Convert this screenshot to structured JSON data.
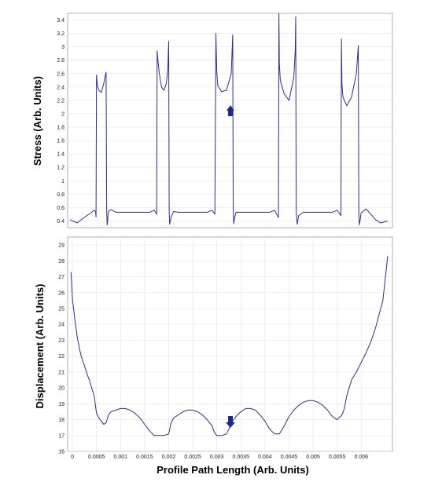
{
  "chart_data": [
    {
      "type": "line",
      "title": "",
      "ylabel": "Stress (Arb. Units)",
      "xlabel": "",
      "xlim": [
        -0.0001,
        0.00665
      ],
      "ylim": [
        0.3,
        3.5
      ],
      "grid": true,
      "y_ticks": [
        "0.4",
        "0.6",
        "0.8",
        "1",
        "1.2",
        "1.4",
        "1.6",
        "1.8",
        "2",
        "2.2",
        "2.4",
        "2.6",
        "2.8",
        "3",
        "3.2",
        "3.4"
      ],
      "x_ticks": [],
      "series": [
        {
          "name": "",
          "color": "#2b2f8c",
          "x": [
            -5e-05,
            0,
            0.0001,
            0.0002,
            0.0003,
            0.0004,
            0.00045,
            0.00048,
            0.00049,
            0.0005,
            0.00052,
            0.00055,
            0.0006,
            0.00065,
            0.00068,
            0.0007,
            0.00071,
            0.00072,
            0.00073,
            0.00074,
            0.00076,
            0.0008,
            0.0009,
            0.001,
            0.0012,
            0.0014,
            0.0016,
            0.0017,
            0.00175,
            0.00176,
            0.00177,
            0.0018,
            0.00185,
            0.0019,
            0.00195,
            0.00198,
            0.002,
            0.00201,
            0.00202,
            0.00205,
            0.0021,
            0.0022,
            0.0024,
            0.0026,
            0.0028,
            0.0029,
            0.00296,
            0.00298,
            0.00299,
            0.003,
            0.00302,
            0.0031,
            0.0032,
            0.0033,
            0.00333,
            0.00334,
            0.00335,
            0.00337,
            0.0034,
            0.0035,
            0.0037,
            0.0039,
            0.0041,
            0.0042,
            0.00428,
            0.00429,
            0.0043,
            0.00432,
            0.0044,
            0.0045,
            0.0046,
            0.00463,
            0.00464,
            0.00465,
            0.00467,
            0.0047,
            0.0048,
            0.005,
            0.0052,
            0.0054,
            0.0055,
            0.00558,
            0.00559,
            0.0056,
            0.00562,
            0.0057,
            0.0058,
            0.0059,
            0.00594,
            0.00595,
            0.00596,
            0.00598,
            0.006,
            0.0061,
            0.0062,
            0.0063,
            0.0064,
            0.00655
          ],
          "y": [
            0.42,
            0.4,
            0.37,
            0.43,
            0.48,
            0.53,
            0.56,
            0.54,
            0.46,
            2.58,
            2.42,
            2.35,
            2.32,
            2.45,
            2.56,
            2.62,
            0.6,
            0.34,
            0.4,
            0.5,
            0.55,
            0.57,
            0.53,
            0.53,
            0.53,
            0.53,
            0.53,
            0.56,
            0.5,
            2.94,
            2.85,
            2.62,
            2.4,
            2.35,
            2.45,
            2.65,
            3.08,
            0.55,
            0.35,
            0.45,
            0.54,
            0.53,
            0.53,
            0.53,
            0.53,
            0.56,
            0.5,
            3.2,
            2.88,
            2.62,
            2.42,
            2.33,
            2.35,
            2.6,
            3.18,
            0.58,
            0.36,
            0.45,
            0.53,
            0.53,
            0.53,
            0.53,
            0.53,
            0.56,
            0.45,
            3.5,
            2.75,
            2.5,
            2.3,
            2.2,
            2.55,
            2.95,
            3.45,
            0.52,
            0.35,
            0.48,
            0.53,
            0.53,
            0.53,
            0.53,
            0.56,
            0.48,
            3.12,
            2.45,
            2.25,
            2.12,
            2.25,
            2.6,
            3.02,
            0.55,
            0.34,
            0.42,
            0.52,
            0.58,
            0.5,
            0.42,
            0.37,
            0.4
          ]
        }
      ]
    },
    {
      "type": "line",
      "title": "",
      "ylabel": "Displacement (Arb. Units)",
      "xlabel": "Profile Path Length (Arb. Units)",
      "xlim": [
        -0.0001,
        0.00665
      ],
      "ylim": [
        16,
        29.5
      ],
      "grid": true,
      "y_ticks": [
        "16",
        "17",
        "18",
        "19",
        "20",
        "21",
        "22",
        "23",
        "24",
        "25",
        "26",
        "27",
        "28",
        "29"
      ],
      "x_ticks": [
        "0",
        "0.0005",
        "0.001",
        "0.0015",
        "0.002",
        "0.0025",
        "0.003",
        "0.0035",
        "0.004",
        "0.0045",
        "0.005",
        "0.0055",
        "0.006"
      ],
      "series": [
        {
          "name": "",
          "color": "#2b2f8c",
          "x": [
            -3e-05,
            0,
            5e-05,
            0.0001,
            0.00015,
            0.0002,
            0.00025,
            0.0003,
            0.00035,
            0.0004,
            0.00045,
            0.0005,
            0.00055,
            0.0006,
            0.00065,
            0.0007,
            0.00075,
            0.0008,
            0.0009,
            0.001,
            0.0011,
            0.0012,
            0.0013,
            0.0014,
            0.0015,
            0.0016,
            0.0017,
            0.00175,
            0.0018,
            0.0019,
            0.002,
            0.00205,
            0.0021,
            0.0022,
            0.0023,
            0.0024,
            0.0025,
            0.0026,
            0.0027,
            0.0028,
            0.0029,
            0.00295,
            0.003,
            0.0031,
            0.0032,
            0.00325,
            0.0033,
            0.0034,
            0.0035,
            0.0036,
            0.0037,
            0.0038,
            0.0039,
            0.004,
            0.0041,
            0.0042,
            0.0043,
            0.0044,
            0.0045,
            0.0046,
            0.0047,
            0.0048,
            0.0049,
            0.005,
            0.0051,
            0.0052,
            0.0053,
            0.0054,
            0.0055,
            0.0056,
            0.00565,
            0.0057,
            0.0058,
            0.0059,
            0.006,
            0.0061,
            0.0062,
            0.0063,
            0.00645,
            0.00655
          ],
          "y": [
            27.3,
            25.6,
            24.3,
            23.2,
            22.4,
            21.8,
            21.4,
            20.9,
            20.5,
            20.0,
            19.5,
            18.4,
            18.1,
            17.9,
            17.7,
            17.8,
            18.3,
            18.5,
            18.6,
            18.7,
            18.7,
            18.6,
            18.4,
            18.1,
            17.7,
            17.3,
            17.0,
            17.0,
            17.0,
            17.0,
            17.1,
            17.8,
            18.1,
            18.3,
            18.5,
            18.6,
            18.6,
            18.5,
            18.3,
            18.0,
            17.6,
            17.2,
            17.0,
            17.0,
            17.1,
            17.4,
            17.8,
            18.2,
            18.5,
            18.7,
            18.7,
            18.6,
            18.3,
            17.9,
            17.4,
            17.1,
            17.1,
            17.6,
            18.2,
            18.6,
            18.9,
            19.1,
            19.2,
            19.2,
            19.1,
            18.9,
            18.6,
            18.2,
            18.0,
            18.3,
            18.7,
            19.5,
            20.5,
            21.0,
            21.6,
            22.2,
            22.9,
            23.8,
            25.5,
            28.3
          ]
        }
      ]
    }
  ]
}
